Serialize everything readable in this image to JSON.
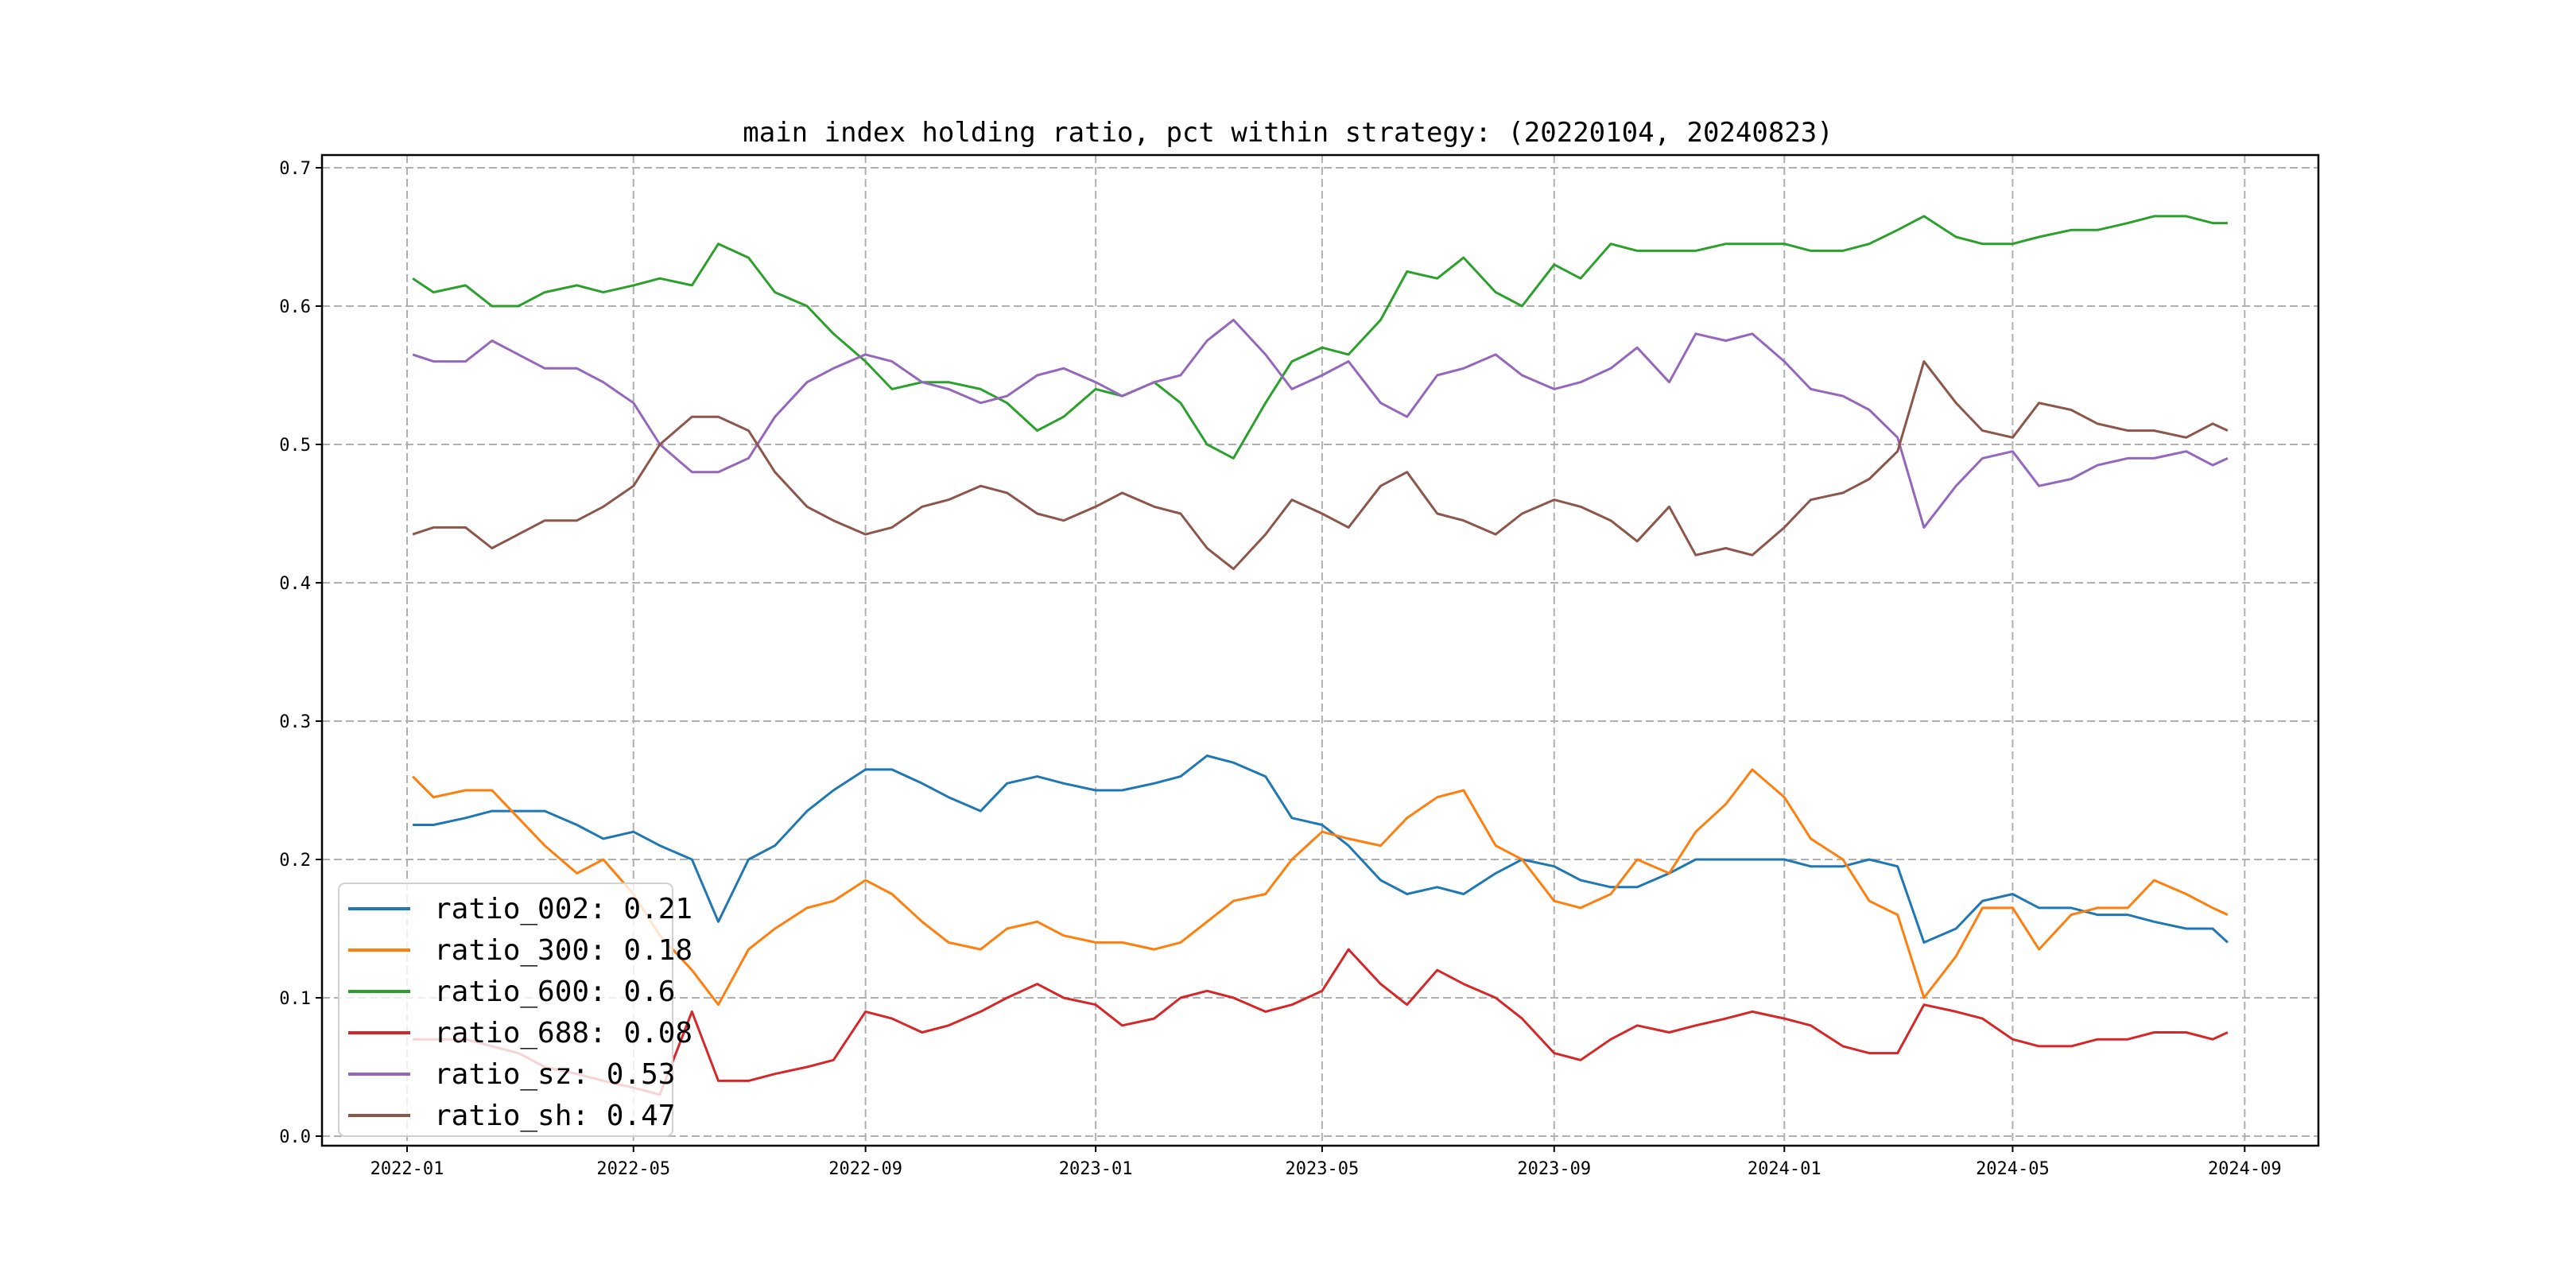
{
  "chart_data": {
    "type": "line",
    "title": "main index holding ratio, pct within strategy: (20220104, 20240823)",
    "xlabel": "",
    "ylabel": "",
    "ylim": [
      0.0,
      0.7
    ],
    "grid": true,
    "legend_position": "lower-left",
    "y_ticks": [
      "0.0",
      "0.1",
      "0.2",
      "0.3",
      "0.4",
      "0.5",
      "0.6",
      "0.7"
    ],
    "x_ticks": [
      "2022-01",
      "2022-05",
      "2022-09",
      "2023-01",
      "2023-05",
      "2023-09",
      "2024-01",
      "2024-05",
      "2024-09"
    ],
    "x": [
      "2022-01-04",
      "2022-01-15",
      "2022-02-01",
      "2022-02-15",
      "2022-03-01",
      "2022-03-15",
      "2022-04-01",
      "2022-04-15",
      "2022-05-01",
      "2022-05-15",
      "2022-06-01",
      "2022-06-15",
      "2022-07-01",
      "2022-07-15",
      "2022-08-01",
      "2022-08-15",
      "2022-09-01",
      "2022-09-15",
      "2022-10-01",
      "2022-10-15",
      "2022-11-01",
      "2022-11-15",
      "2022-12-01",
      "2022-12-15",
      "2023-01-01",
      "2023-01-15",
      "2023-02-01",
      "2023-02-15",
      "2023-03-01",
      "2023-03-15",
      "2023-04-01",
      "2023-04-15",
      "2023-05-01",
      "2023-05-15",
      "2023-06-01",
      "2023-06-15",
      "2023-07-01",
      "2023-07-15",
      "2023-08-01",
      "2023-08-15",
      "2023-09-01",
      "2023-09-15",
      "2023-10-01",
      "2023-10-15",
      "2023-11-01",
      "2023-11-15",
      "2023-12-01",
      "2023-12-15",
      "2024-01-01",
      "2024-01-15",
      "2024-02-01",
      "2024-02-15",
      "2024-03-01",
      "2024-03-15",
      "2024-04-01",
      "2024-04-15",
      "2024-05-01",
      "2024-05-15",
      "2024-06-01",
      "2024-06-15",
      "2024-07-01",
      "2024-07-15",
      "2024-08-01",
      "2024-08-15",
      "2024-08-23"
    ],
    "series": [
      {
        "name": "ratio_002",
        "legend": "ratio_002: 0.21",
        "color": "#1f77b4",
        "values": [
          0.225,
          0.225,
          0.23,
          0.235,
          0.235,
          0.235,
          0.225,
          0.215,
          0.22,
          0.21,
          0.2,
          0.155,
          0.2,
          0.21,
          0.235,
          0.25,
          0.265,
          0.265,
          0.255,
          0.245,
          0.235,
          0.255,
          0.26,
          0.255,
          0.25,
          0.25,
          0.255,
          0.26,
          0.275,
          0.27,
          0.26,
          0.23,
          0.225,
          0.21,
          0.185,
          0.175,
          0.18,
          0.175,
          0.19,
          0.2,
          0.195,
          0.185,
          0.18,
          0.18,
          0.19,
          0.2,
          0.2,
          0.2,
          0.2,
          0.195,
          0.195,
          0.2,
          0.195,
          0.14,
          0.15,
          0.17,
          0.175,
          0.165,
          0.165,
          0.16,
          0.16,
          0.155,
          0.15,
          0.15,
          0.14
        ]
      },
      {
        "name": "ratio_300",
        "legend": "ratio_300: 0.18",
        "color": "#ff7f0e",
        "values": [
          0.26,
          0.245,
          0.25,
          0.25,
          0.23,
          0.21,
          0.19,
          0.2,
          0.175,
          0.145,
          0.12,
          0.095,
          0.135,
          0.15,
          0.165,
          0.17,
          0.185,
          0.175,
          0.155,
          0.14,
          0.135,
          0.15,
          0.155,
          0.145,
          0.14,
          0.14,
          0.135,
          0.14,
          0.155,
          0.17,
          0.175,
          0.2,
          0.22,
          0.215,
          0.21,
          0.23,
          0.245,
          0.25,
          0.21,
          0.2,
          0.17,
          0.165,
          0.175,
          0.2,
          0.19,
          0.22,
          0.24,
          0.265,
          0.245,
          0.215,
          0.2,
          0.17,
          0.16,
          0.1,
          0.13,
          0.165,
          0.165,
          0.135,
          0.16,
          0.165,
          0.165,
          0.185,
          0.175,
          0.165,
          0.16
        ]
      },
      {
        "name": "ratio_600",
        "legend": "ratio_600: 0.6",
        "color": "#2ca02c",
        "values": [
          0.62,
          0.61,
          0.615,
          0.6,
          0.6,
          0.61,
          0.615,
          0.61,
          0.615,
          0.62,
          0.615,
          0.645,
          0.635,
          0.61,
          0.6,
          0.58,
          0.56,
          0.54,
          0.545,
          0.545,
          0.54,
          0.53,
          0.51,
          0.52,
          0.54,
          0.535,
          0.545,
          0.53,
          0.5,
          0.49,
          0.53,
          0.56,
          0.57,
          0.565,
          0.59,
          0.625,
          0.62,
          0.635,
          0.61,
          0.6,
          0.63,
          0.62,
          0.645,
          0.64,
          0.64,
          0.64,
          0.645,
          0.645,
          0.645,
          0.64,
          0.64,
          0.645,
          0.655,
          0.665,
          0.65,
          0.645,
          0.645,
          0.65,
          0.655,
          0.655,
          0.66,
          0.665,
          0.665,
          0.66,
          0.66
        ]
      },
      {
        "name": "ratio_688",
        "legend": "ratio_688: 0.08",
        "color": "#d62728",
        "values": [
          0.07,
          0.07,
          0.07,
          0.065,
          0.06,
          0.05,
          0.045,
          0.04,
          0.035,
          0.03,
          0.09,
          0.04,
          0.04,
          0.045,
          0.05,
          0.055,
          0.09,
          0.085,
          0.075,
          0.08,
          0.09,
          0.1,
          0.11,
          0.1,
          0.095,
          0.08,
          0.085,
          0.1,
          0.105,
          0.1,
          0.09,
          0.095,
          0.105,
          0.135,
          0.11,
          0.095,
          0.12,
          0.11,
          0.1,
          0.085,
          0.06,
          0.055,
          0.07,
          0.08,
          0.075,
          0.08,
          0.085,
          0.09,
          0.085,
          0.08,
          0.065,
          0.06,
          0.06,
          0.095,
          0.09,
          0.085,
          0.07,
          0.065,
          0.065,
          0.07,
          0.07,
          0.075,
          0.075,
          0.07,
          0.075
        ]
      },
      {
        "name": "ratio_sz",
        "legend": "ratio_sz: 0.53",
        "color": "#9467bd",
        "values": [
          0.565,
          0.56,
          0.56,
          0.575,
          0.565,
          0.555,
          0.555,
          0.545,
          0.53,
          0.5,
          0.48,
          0.48,
          0.49,
          0.52,
          0.545,
          0.555,
          0.565,
          0.56,
          0.545,
          0.54,
          0.53,
          0.535,
          0.55,
          0.555,
          0.545,
          0.535,
          0.545,
          0.55,
          0.575,
          0.59,
          0.565,
          0.54,
          0.55,
          0.56,
          0.53,
          0.52,
          0.55,
          0.555,
          0.565,
          0.55,
          0.54,
          0.545,
          0.555,
          0.57,
          0.545,
          0.58,
          0.575,
          0.58,
          0.56,
          0.54,
          0.535,
          0.525,
          0.505,
          0.44,
          0.47,
          0.49,
          0.495,
          0.47,
          0.475,
          0.485,
          0.49,
          0.49,
          0.495,
          0.485,
          0.49
        ]
      },
      {
        "name": "ratio_sh",
        "legend": "ratio_sh: 0.47",
        "color": "#8c564b",
        "values": [
          0.435,
          0.44,
          0.44,
          0.425,
          0.435,
          0.445,
          0.445,
          0.455,
          0.47,
          0.5,
          0.52,
          0.52,
          0.51,
          0.48,
          0.455,
          0.445,
          0.435,
          0.44,
          0.455,
          0.46,
          0.47,
          0.465,
          0.45,
          0.445,
          0.455,
          0.465,
          0.455,
          0.45,
          0.425,
          0.41,
          0.435,
          0.46,
          0.45,
          0.44,
          0.47,
          0.48,
          0.45,
          0.445,
          0.435,
          0.45,
          0.46,
          0.455,
          0.445,
          0.43,
          0.455,
          0.42,
          0.425,
          0.42,
          0.44,
          0.46,
          0.465,
          0.475,
          0.495,
          0.56,
          0.53,
          0.51,
          0.505,
          0.53,
          0.525,
          0.515,
          0.51,
          0.51,
          0.505,
          0.515,
          0.51
        ]
      }
    ]
  }
}
